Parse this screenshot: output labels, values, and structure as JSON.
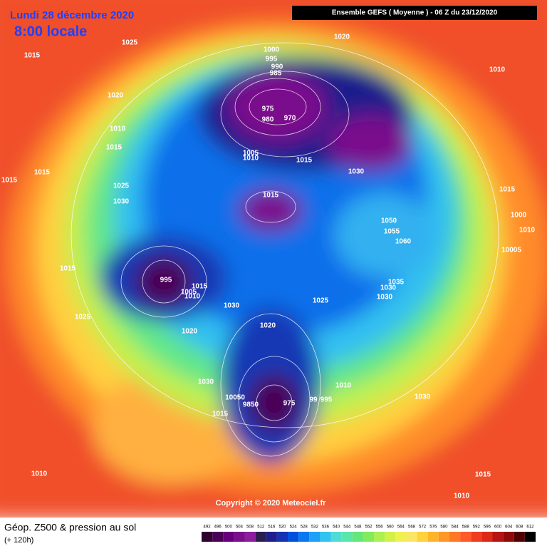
{
  "header": {
    "date": "Lundi 28 décembre 2020",
    "time": "8:00 locale",
    "run": "Ensemble GEFS  ( Moyenne )  -  06 Z du 23/12/2020"
  },
  "copyright": "Copyright © 2020 Meteociel.fr",
  "footer": {
    "title": "Géop. Z500 & pression au sol",
    "lead": "(+ 120h)"
  },
  "legend": {
    "values": [
      492,
      496,
      500,
      504,
      508,
      512,
      516,
      520,
      524,
      528,
      532,
      536,
      540,
      544,
      548,
      552,
      556,
      560,
      564,
      568,
      572,
      576,
      580,
      584,
      588,
      592,
      596,
      600,
      604,
      608,
      612
    ],
    "colors": [
      "#2d0030",
      "#4b0055",
      "#66007a",
      "#7a0f8c",
      "#8c1e9e",
      "#2b1e4d",
      "#1e1e8c",
      "#1432b4",
      "#0050dc",
      "#0a78f0",
      "#1ea0f5",
      "#32c3f0",
      "#50dcd2",
      "#5ae6aa",
      "#64e678",
      "#82eb5a",
      "#aaf050",
      "#d2f046",
      "#f0f050",
      "#fae664",
      "#ffd23c",
      "#ffb428",
      "#ff9628",
      "#ff7828",
      "#ff5a28",
      "#f03c1e",
      "#dc2814",
      "#b41414",
      "#8c0a0a",
      "#500000",
      "#000000"
    ]
  },
  "isobar_labels": [
    "1015",
    "1025",
    "1020",
    "1010",
    "1000",
    "995",
    "990",
    "985",
    "1020",
    "1010",
    "1015",
    "975",
    "970",
    "980",
    "1015",
    "1015",
    "1005",
    "1010",
    "1015",
    "1030",
    "1025",
    "1030",
    "1015",
    "1015",
    "1000",
    "1010",
    "1050",
    "1055",
    "1060",
    "10005",
    "1015",
    "995",
    "1015",
    "1035",
    "1030",
    "1030",
    "1005",
    "1010",
    "1025",
    "1030",
    "1025",
    "1020",
    "1020",
    "1030",
    "1010",
    "1030",
    "10050",
    "9850",
    "975",
    "99",
    "995",
    "1015",
    "1010",
    "1015",
    "1010"
  ]
}
